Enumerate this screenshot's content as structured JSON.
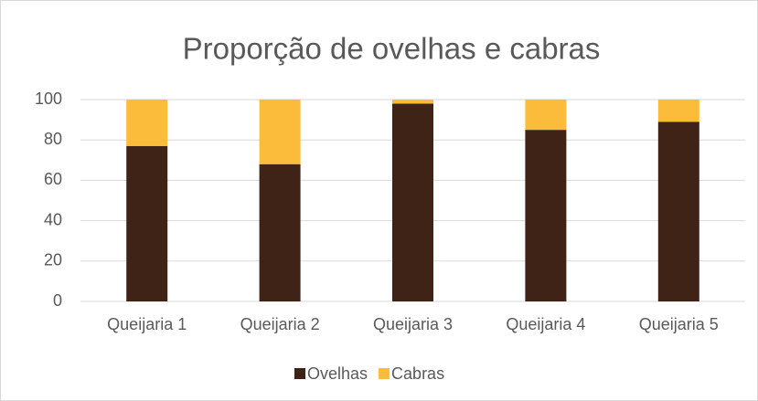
{
  "chart_data": {
    "type": "stacked_bar",
    "title": "Proporção de ovelhas e cabras",
    "categories": [
      "Queijaria 1",
      "Queijaria 2",
      "Queijaria 3",
      "Queijaria 4",
      "Queijaria 5"
    ],
    "series": [
      {
        "name": "Ovelhas",
        "color": "#3f2317",
        "values": [
          77,
          68,
          98,
          85,
          89
        ]
      },
      {
        "name": "Cabras",
        "color": "#fbbb3b",
        "values": [
          23,
          32,
          2,
          15,
          11
        ]
      }
    ],
    "ylim": [
      0,
      100
    ],
    "yticks": [
      0,
      20,
      40,
      60,
      80,
      100
    ],
    "grid": true,
    "legend": "bottom"
  }
}
